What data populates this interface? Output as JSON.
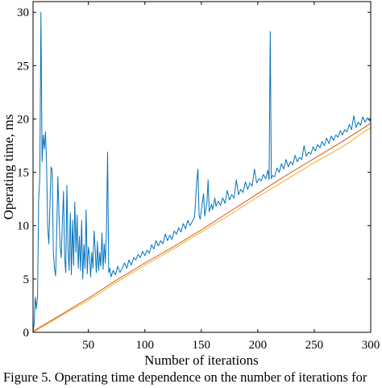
{
  "caption": "Figure 5. Operating time dependence on the number of iterations for",
  "chart_data": {
    "type": "line",
    "title": "",
    "xlabel": "Number of iterations",
    "ylabel": "Operating time, ms",
    "xlim": [
      1,
      300
    ],
    "ylim": [
      0,
      31
    ],
    "xticks": [
      50,
      100,
      150,
      200,
      250,
      300
    ],
    "yticks": [
      0,
      5,
      10,
      15,
      20,
      25,
      30
    ],
    "grid": false,
    "legend": "none",
    "series": [
      {
        "color": "#0072BD",
        "points": [
          [
            1,
            0.1
          ],
          [
            2,
            0.8
          ],
          [
            3,
            3.3
          ],
          [
            4,
            2.2
          ],
          [
            5,
            3.4
          ],
          [
            6,
            12.5
          ],
          [
            7,
            14.5
          ],
          [
            8,
            30.0
          ],
          [
            9,
            16.0
          ],
          [
            10,
            18.5
          ],
          [
            11,
            17.2
          ],
          [
            12,
            18.8
          ],
          [
            13,
            15.8
          ],
          [
            14,
            9.8
          ],
          [
            15,
            8.3
          ],
          [
            16,
            12.0
          ],
          [
            17,
            15.5
          ],
          [
            18,
            15.2
          ],
          [
            19,
            7.5
          ],
          [
            20,
            6.0
          ],
          [
            21,
            5.3
          ],
          [
            22,
            9.5
          ],
          [
            23,
            14.6
          ],
          [
            24,
            11.0
          ],
          [
            25,
            8.0
          ],
          [
            26,
            7.0
          ],
          [
            27,
            10.3
          ],
          [
            28,
            13.2
          ],
          [
            29,
            7.0
          ],
          [
            30,
            5.6
          ],
          [
            31,
            13.8
          ],
          [
            32,
            8.0
          ],
          [
            33,
            5.8
          ],
          [
            34,
            11.2
          ],
          [
            35,
            5.4
          ],
          [
            36,
            10.5
          ],
          [
            37,
            6.3
          ],
          [
            38,
            12.2
          ],
          [
            39,
            7.5
          ],
          [
            40,
            11.0
          ],
          [
            41,
            6.0
          ],
          [
            42,
            9.0
          ],
          [
            43,
            5.8
          ],
          [
            44,
            10.5
          ],
          [
            45,
            5.0
          ],
          [
            46,
            8.2
          ],
          [
            47,
            6.0
          ],
          [
            48,
            11.5
          ],
          [
            49,
            5.5
          ],
          [
            50,
            8.0
          ],
          [
            51,
            7.2
          ],
          [
            52,
            5.2
          ],
          [
            53,
            7.5
          ],
          [
            54,
            6.0
          ],
          [
            55,
            9.5
          ],
          [
            56,
            7.8
          ],
          [
            57,
            5.6
          ],
          [
            58,
            8.5
          ],
          [
            59,
            5.8
          ],
          [
            60,
            7.5
          ],
          [
            61,
            6.2
          ],
          [
            62,
            9.3
          ],
          [
            63,
            5.9
          ],
          [
            64,
            8.3
          ],
          [
            65,
            6.5
          ],
          [
            66,
            9.5
          ],
          [
            67,
            16.9
          ],
          [
            68,
            5.6
          ],
          [
            69,
            6.0
          ],
          [
            70,
            5.2
          ],
          [
            72,
            5.8
          ],
          [
            74,
            5.4
          ],
          [
            76,
            6.2
          ],
          [
            78,
            5.6
          ],
          [
            80,
            6.0
          ],
          [
            82,
            6.5
          ],
          [
            84,
            6.0
          ],
          [
            86,
            6.8
          ],
          [
            88,
            6.3
          ],
          [
            90,
            7.0
          ],
          [
            92,
            6.8
          ],
          [
            94,
            7.3
          ],
          [
            96,
            7.0
          ],
          [
            98,
            7.6
          ],
          [
            100,
            7.2
          ],
          [
            102,
            7.7
          ],
          [
            104,
            7.4
          ],
          [
            106,
            8.2
          ],
          [
            108,
            7.8
          ],
          [
            110,
            8.6
          ],
          [
            112,
            8.1
          ],
          [
            114,
            8.6
          ],
          [
            116,
            8.3
          ],
          [
            118,
            9.2
          ],
          [
            120,
            8.6
          ],
          [
            122,
            9.1
          ],
          [
            124,
            8.7
          ],
          [
            126,
            9.5
          ],
          [
            128,
            9.2
          ],
          [
            130,
            9.8
          ],
          [
            132,
            9.4
          ],
          [
            134,
            10.2
          ],
          [
            136,
            9.7
          ],
          [
            138,
            10.5
          ],
          [
            140,
            10.0
          ],
          [
            142,
            10.4
          ],
          [
            144,
            10.8
          ],
          [
            146,
            14.2
          ],
          [
            147,
            15.3
          ],
          [
            148,
            11.0
          ],
          [
            149,
            10.6
          ],
          [
            150,
            11.4
          ],
          [
            152,
            13.0
          ],
          [
            153,
            10.9
          ],
          [
            155,
            12.2
          ],
          [
            156,
            14.3
          ],
          [
            157,
            11.3
          ],
          [
            159,
            12.0
          ],
          [
            160,
            11.5
          ],
          [
            162,
            12.6
          ],
          [
            163,
            11.8
          ],
          [
            165,
            12.3
          ],
          [
            167,
            11.9
          ],
          [
            169,
            12.6
          ],
          [
            171,
            12.1
          ],
          [
            173,
            13.3
          ],
          [
            175,
            12.4
          ],
          [
            177,
            12.9
          ],
          [
            179,
            12.6
          ],
          [
            181,
            14.3
          ],
          [
            183,
            12.9
          ],
          [
            185,
            13.4
          ],
          [
            187,
            13.1
          ],
          [
            189,
            14.1
          ],
          [
            191,
            13.4
          ],
          [
            193,
            14.0
          ],
          [
            195,
            13.7
          ],
          [
            197,
            15.3
          ],
          [
            199,
            14.0
          ],
          [
            201,
            14.4
          ],
          [
            203,
            14.2
          ],
          [
            205,
            14.8
          ],
          [
            207,
            14.4
          ],
          [
            209,
            15.2
          ],
          [
            210,
            14.3
          ],
          [
            211,
            28.2
          ],
          [
            212,
            14.4
          ],
          [
            213,
            14.7
          ],
          [
            215,
            14.6
          ],
          [
            217,
            15.4
          ],
          [
            219,
            15.0
          ],
          [
            221,
            15.8
          ],
          [
            223,
            15.3
          ],
          [
            225,
            16.2
          ],
          [
            227,
            15.5
          ],
          [
            229,
            16.0
          ],
          [
            231,
            15.7
          ],
          [
            233,
            16.6
          ],
          [
            235,
            16.0
          ],
          [
            237,
            16.4
          ],
          [
            239,
            16.2
          ],
          [
            241,
            17.5
          ],
          [
            243,
            16.5
          ],
          [
            245,
            16.9
          ],
          [
            247,
            16.7
          ],
          [
            249,
            17.4
          ],
          [
            251,
            17.0
          ],
          [
            253,
            17.6
          ],
          [
            255,
            17.3
          ],
          [
            257,
            17.9
          ],
          [
            259,
            17.5
          ],
          [
            261,
            18.2
          ],
          [
            263,
            17.7
          ],
          [
            265,
            18.4
          ],
          [
            267,
            18.0
          ],
          [
            269,
            18.5
          ],
          [
            271,
            18.3
          ],
          [
            273,
            18.9
          ],
          [
            275,
            18.5
          ],
          [
            277,
            19.0
          ],
          [
            279,
            18.8
          ],
          [
            281,
            19.5
          ],
          [
            283,
            19.0
          ],
          [
            285,
            20.3
          ],
          [
            287,
            19.2
          ],
          [
            289,
            19.7
          ],
          [
            291,
            19.4
          ],
          [
            293,
            20.2
          ],
          [
            295,
            19.7
          ],
          [
            297,
            20.1
          ],
          [
            299,
            19.8
          ],
          [
            300,
            20.0
          ]
        ]
      },
      {
        "color": "#D95319",
        "points": [
          [
            1,
            0.1
          ],
          [
            25,
            1.6
          ],
          [
            50,
            3.2
          ],
          [
            75,
            4.9
          ],
          [
            100,
            6.5
          ],
          [
            125,
            8.0
          ],
          [
            150,
            9.6
          ],
          [
            175,
            11.3
          ],
          [
            200,
            13.0
          ],
          [
            210,
            13.7
          ],
          [
            225,
            14.7
          ],
          [
            250,
            16.3
          ],
          [
            275,
            17.9
          ],
          [
            300,
            19.6
          ]
        ]
      },
      {
        "color": "#EDB120",
        "points": [
          [
            1,
            0.0
          ],
          [
            25,
            1.5
          ],
          [
            50,
            3.0
          ],
          [
            75,
            4.7
          ],
          [
            100,
            6.3
          ],
          [
            125,
            7.8
          ],
          [
            150,
            9.4
          ],
          [
            175,
            11.0
          ],
          [
            200,
            12.7
          ],
          [
            225,
            14.3
          ],
          [
            250,
            15.9
          ],
          [
            275,
            17.4
          ],
          [
            300,
            19.2
          ]
        ]
      }
    ]
  }
}
